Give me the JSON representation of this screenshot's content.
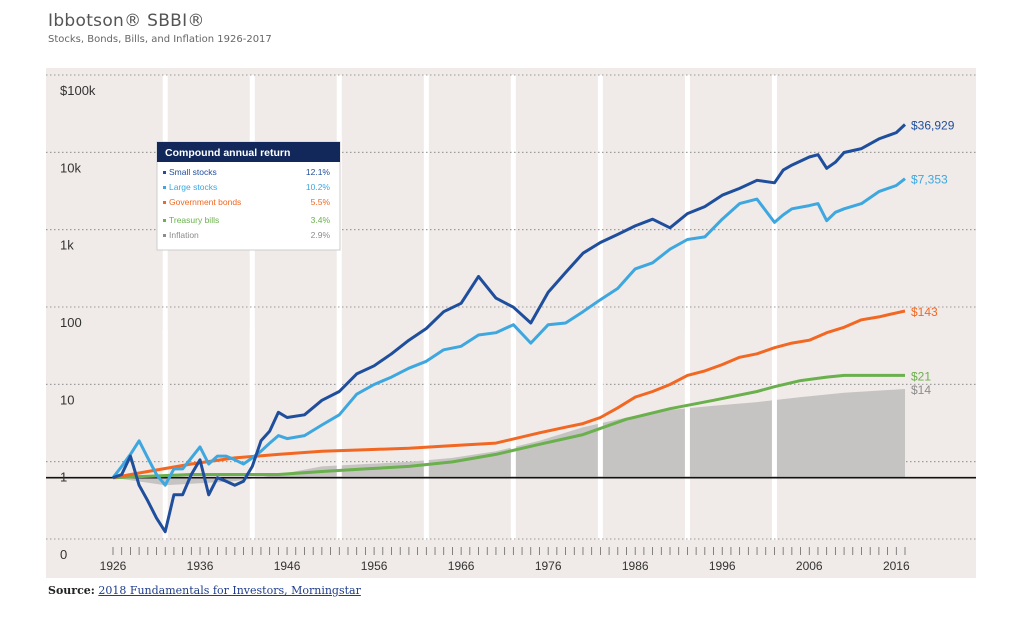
{
  "header": {
    "title": "Ibbotson® SBBI®",
    "subtitle": "Stocks, Bonds, Bills, and Inflation 1926-2017"
  },
  "source": {
    "label": "Source:",
    "link_text": "2018 Fundamentals for Investors, Morningstar"
  },
  "chart_data": {
    "type": "line",
    "y_scale": "log",
    "ylim": [
      0.1,
      100000
    ],
    "xlim": [
      1926,
      2017
    ],
    "y_ticks": [
      {
        "value": 100000,
        "label": "$100k"
      },
      {
        "value": 10000,
        "label": "10k"
      },
      {
        "value": 1000,
        "label": "1k"
      },
      {
        "value": 100,
        "label": "100"
      },
      {
        "value": 10,
        "label": "10"
      },
      {
        "value": 1,
        "label": "1"
      },
      {
        "value": 0.1,
        "label": "0"
      }
    ],
    "x_ticks": [
      1926,
      1936,
      1946,
      1956,
      1966,
      1976,
      1986,
      1996,
      2006,
      2016
    ],
    "grid": "vertical-decade-bands",
    "legend": {
      "title": "Compound annual return",
      "placement": "top-left",
      "entries": [
        {
          "name": "Small stocks",
          "return": "12.1%",
          "color": "#1f4e9c"
        },
        {
          "name": "Large stocks",
          "return": "10.2%",
          "color": "#3ea7e0"
        },
        {
          "name": "Government bonds",
          "return": "5.5%",
          "color": "#f26722"
        },
        {
          "name": "Treasury bills",
          "return": "3.4%",
          "color": "#6ab04c"
        },
        {
          "name": "Inflation",
          "return": "2.9%",
          "color": "#8c8c8c"
        }
      ]
    },
    "series": [
      {
        "name": "Small stocks",
        "color": "#1f4e9c",
        "end_label": "$36,929",
        "x": [
          1926,
          1927,
          1928,
          1929,
          1930,
          1931,
          1932,
          1933,
          1934,
          1935,
          1936,
          1937,
          1938,
          1939,
          1940,
          1941,
          1942,
          1943,
          1944,
          1945,
          1946,
          1948,
          1950,
          1952,
          1954,
          1956,
          1958,
          1960,
          1962,
          1964,
          1966,
          1968,
          1970,
          1972,
          1974,
          1976,
          1978,
          1980,
          1982,
          1984,
          1986,
          1988,
          1990,
          1992,
          1994,
          1996,
          1998,
          2000,
          2002,
          2003,
          2004,
          2006,
          2007,
          2008,
          2009,
          2010,
          2012,
          2014,
          2016,
          2017
        ],
        "values": [
          1,
          1.1,
          1.9,
          0.8,
          0.5,
          0.3,
          0.2,
          0.6,
          0.6,
          1.1,
          1.7,
          0.6,
          1,
          0.9,
          0.8,
          0.9,
          1.4,
          3,
          4,
          7,
          6,
          6.5,
          10,
          13,
          22,
          28,
          40,
          60,
          85,
          140,
          180,
          400,
          210,
          160,
          100,
          250,
          450,
          800,
          1100,
          1400,
          1800,
          2200,
          1700,
          2600,
          3200,
          4500,
          5500,
          7000,
          6500,
          9500,
          11000,
          14000,
          15000,
          10000,
          12000,
          16000,
          18000,
          24000,
          29000,
          36929
        ]
      },
      {
        "name": "Large stocks",
        "color": "#3ea7e0",
        "end_label": "$7,353",
        "x": [
          1926,
          1927,
          1928,
          1929,
          1930,
          1931,
          1932,
          1933,
          1934,
          1935,
          1936,
          1937,
          1938,
          1939,
          1940,
          1941,
          1942,
          1943,
          1944,
          1945,
          1946,
          1948,
          1950,
          1952,
          1954,
          1956,
          1958,
          1960,
          1962,
          1964,
          1966,
          1968,
          1970,
          1972,
          1974,
          1976,
          1978,
          1980,
          1982,
          1984,
          1986,
          1988,
          1990,
          1992,
          1994,
          1996,
          1998,
          2000,
          2002,
          2003,
          2004,
          2006,
          2007,
          2008,
          2009,
          2010,
          2012,
          2014,
          2016,
          2017
        ],
        "values": [
          1,
          1.4,
          2,
          3,
          1.8,
          1.1,
          0.8,
          1.3,
          1.3,
          1.8,
          2.5,
          1.5,
          1.9,
          1.9,
          1.7,
          1.5,
          1.8,
          2.2,
          2.8,
          3.5,
          3.2,
          3.5,
          4.8,
          6.5,
          12,
          16,
          20,
          26,
          32,
          45,
          50,
          70,
          75,
          95,
          55,
          95,
          100,
          140,
          200,
          280,
          500,
          600,
          900,
          1200,
          1300,
          2200,
          3500,
          4000,
          2000,
          2500,
          3000,
          3300,
          3500,
          2100,
          2700,
          3000,
          3500,
          5000,
          6000,
          7353
        ]
      },
      {
        "name": "Government bonds",
        "color": "#f26722",
        "end_label": "$143",
        "x": [
          1926,
          1930,
          1935,
          1940,
          1945,
          1950,
          1955,
          1960,
          1965,
          1970,
          1975,
          1978,
          1980,
          1982,
          1984,
          1986,
          1988,
          1990,
          1992,
          1994,
          1996,
          1998,
          2000,
          2002,
          2004,
          2006,
          2008,
          2010,
          2012,
          2014,
          2016,
          2017
        ],
        "values": [
          1,
          1.2,
          1.5,
          1.8,
          2,
          2.2,
          2.3,
          2.4,
          2.6,
          2.8,
          3.8,
          4.5,
          5,
          6,
          8,
          11,
          13,
          16,
          21,
          24,
          29,
          36,
          40,
          48,
          55,
          60,
          75,
          88,
          110,
          120,
          135,
          143
        ]
      },
      {
        "name": "Treasury bills",
        "color": "#6ab04c",
        "end_label": "$21",
        "x": [
          1926,
          1935,
          1945,
          1950,
          1955,
          1960,
          1965,
          1970,
          1975,
          1980,
          1985,
          1990,
          1995,
          2000,
          2002,
          2005,
          2008,
          2010,
          2017
        ],
        "values": [
          1,
          1.1,
          1.1,
          1.2,
          1.3,
          1.4,
          1.6,
          2,
          2.7,
          3.6,
          5.7,
          7.8,
          10,
          13,
          15,
          18,
          20,
          21,
          21
        ]
      },
      {
        "name": "Inflation",
        "color": "#8c8c8c",
        "end_label": "$14",
        "x": [
          1926,
          1932,
          1940,
          1945,
          1950,
          1955,
          1960,
          1965,
          1970,
          1975,
          1980,
          1985,
          1990,
          1995,
          2000,
          2005,
          2010,
          2017
        ],
        "values": [
          1,
          0.8,
          0.9,
          1.1,
          1.4,
          1.5,
          1.6,
          1.8,
          2.2,
          3,
          4.5,
          6,
          7.5,
          8.5,
          9.5,
          11,
          12.5,
          14
        ]
      }
    ]
  }
}
